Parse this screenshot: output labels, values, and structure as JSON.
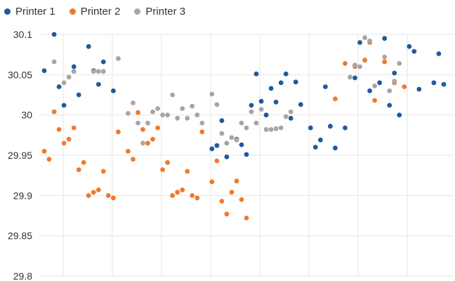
{
  "chart_data": {
    "type": "scatter",
    "title": "",
    "xlabel": "",
    "ylabel": "",
    "ylim": [
      29.8,
      30.1
    ],
    "xlim": [
      0,
      84
    ],
    "y_ticks": [
      "29.8",
      "29.85",
      "29.9",
      "29.95",
      "30",
      "30.05",
      "30.1"
    ],
    "grid": true,
    "legend_position": "top-left",
    "series": [
      {
        "name": "Printer 1",
        "color": "#1f5aa0",
        "points": [
          [
            1,
            30.055
          ],
          [
            3,
            30.1
          ],
          [
            4,
            30.035
          ],
          [
            5,
            30.012
          ],
          [
            7,
            30.06
          ],
          [
            8,
            30.025
          ],
          [
            10,
            30.085
          ],
          [
            11,
            30.055
          ],
          [
            12,
            30.038
          ],
          [
            13,
            30.066
          ],
          [
            15,
            30.03
          ],
          [
            35,
            29.958
          ],
          [
            36,
            29.962
          ],
          [
            37,
            29.993
          ],
          [
            38,
            29.948
          ],
          [
            40,
            29.97
          ],
          [
            41,
            29.963
          ],
          [
            42,
            29.951
          ],
          [
            43,
            30.012
          ],
          [
            44,
            30.051
          ],
          [
            45,
            30.017
          ],
          [
            46,
            30.0
          ],
          [
            47,
            30.033
          ],
          [
            48,
            30.016
          ],
          [
            49,
            30.04
          ],
          [
            50,
            30.051
          ],
          [
            51,
            29.996
          ],
          [
            52,
            30.041
          ],
          [
            53,
            30.013
          ],
          [
            55,
            29.984
          ],
          [
            56,
            29.96
          ],
          [
            57,
            29.969
          ],
          [
            58,
            30.035
          ],
          [
            59,
            29.986
          ],
          [
            60,
            29.959
          ],
          [
            62,
            29.984
          ],
          [
            64,
            30.046
          ],
          [
            65,
            30.09
          ],
          [
            67,
            30.03
          ],
          [
            69,
            30.04
          ],
          [
            70,
            30.095
          ],
          [
            71,
            30.012
          ],
          [
            72,
            30.052
          ],
          [
            73,
            30.0
          ],
          [
            75,
            30.085
          ],
          [
            76,
            30.079
          ],
          [
            77,
            30.032
          ],
          [
            80,
            30.04
          ],
          [
            81,
            30.076
          ],
          [
            82,
            30.038
          ],
          [
            85,
            30.042
          ]
        ]
      },
      {
        "name": "Printer 2",
        "color": "#f07a2e",
        "points": [
          [
            1,
            29.955
          ],
          [
            2,
            29.945
          ],
          [
            3,
            30.004
          ],
          [
            4,
            29.982
          ],
          [
            5,
            29.965
          ],
          [
            6,
            29.97
          ],
          [
            7,
            29.984
          ],
          [
            8,
            29.932
          ],
          [
            9,
            29.941
          ],
          [
            10,
            29.9
          ],
          [
            11,
            29.904
          ],
          [
            12,
            29.907
          ],
          [
            13,
            29.93
          ],
          [
            14,
            29.9
          ],
          [
            15,
            29.897
          ],
          [
            16,
            29.979
          ],
          [
            18,
            29.955
          ],
          [
            19,
            29.945
          ],
          [
            20,
            30.003
          ],
          [
            21,
            29.982
          ],
          [
            22,
            29.965
          ],
          [
            23,
            29.97
          ],
          [
            24,
            29.984
          ],
          [
            25,
            29.932
          ],
          [
            26,
            29.941
          ],
          [
            27,
            29.9
          ],
          [
            28,
            29.904
          ],
          [
            29,
            29.907
          ],
          [
            30,
            29.93
          ],
          [
            31,
            29.9
          ],
          [
            32,
            29.897
          ],
          [
            33,
            29.979
          ],
          [
            35,
            29.917
          ],
          [
            36,
            29.943
          ],
          [
            37,
            29.893
          ],
          [
            38,
            29.877
          ],
          [
            39,
            29.904
          ],
          [
            40,
            29.918
          ],
          [
            41,
            29.895
          ],
          [
            42,
            29.872
          ],
          [
            60,
            30.02
          ],
          [
            62,
            30.064
          ],
          [
            64,
            30.06
          ],
          [
            66,
            30.068
          ],
          [
            67,
            30.09
          ],
          [
            68,
            30.018
          ],
          [
            70,
            30.066
          ],
          [
            72,
            30.04
          ],
          [
            74,
            30.035
          ]
        ]
      },
      {
        "name": "Printer 3",
        "color": "#a6a6a6",
        "points": [
          [
            3,
            30.066
          ],
          [
            5,
            30.04
          ],
          [
            6,
            30.047
          ],
          [
            7,
            30.054
          ],
          [
            11,
            30.054
          ],
          [
            12,
            30.054
          ],
          [
            13,
            30.054
          ],
          [
            16,
            30.07
          ],
          [
            18,
            30.002
          ],
          [
            19,
            30.015
          ],
          [
            20,
            29.99
          ],
          [
            21,
            29.965
          ],
          [
            22,
            29.99
          ],
          [
            23,
            30.004
          ],
          [
            24,
            30.008
          ],
          [
            25,
            30.0
          ],
          [
            26,
            30.0
          ],
          [
            27,
            30.025
          ],
          [
            28,
            29.996
          ],
          [
            29,
            30.008
          ],
          [
            30,
            29.996
          ],
          [
            31,
            30.011
          ],
          [
            32,
            30.0
          ],
          [
            33,
            29.99
          ],
          [
            35,
            30.026
          ],
          [
            36,
            30.013
          ],
          [
            37,
            29.977
          ],
          [
            38,
            29.965
          ],
          [
            39,
            29.972
          ],
          [
            40,
            29.969
          ],
          [
            41,
            29.99
          ],
          [
            42,
            29.984
          ],
          [
            43,
            30.004
          ],
          [
            44,
            29.99
          ],
          [
            45,
            30.007
          ],
          [
            46,
            29.982
          ],
          [
            47,
            29.982
          ],
          [
            48,
            29.983
          ],
          [
            49,
            29.984
          ],
          [
            50,
            29.998
          ],
          [
            51,
            30.004
          ],
          [
            63,
            30.047
          ],
          [
            64,
            30.062
          ],
          [
            65,
            30.06
          ],
          [
            66,
            30.096
          ],
          [
            67,
            30.092
          ],
          [
            68,
            30.036
          ],
          [
            70,
            30.072
          ],
          [
            71,
            30.03
          ],
          [
            72,
            30.042
          ],
          [
            73,
            30.064
          ]
        ]
      }
    ]
  }
}
